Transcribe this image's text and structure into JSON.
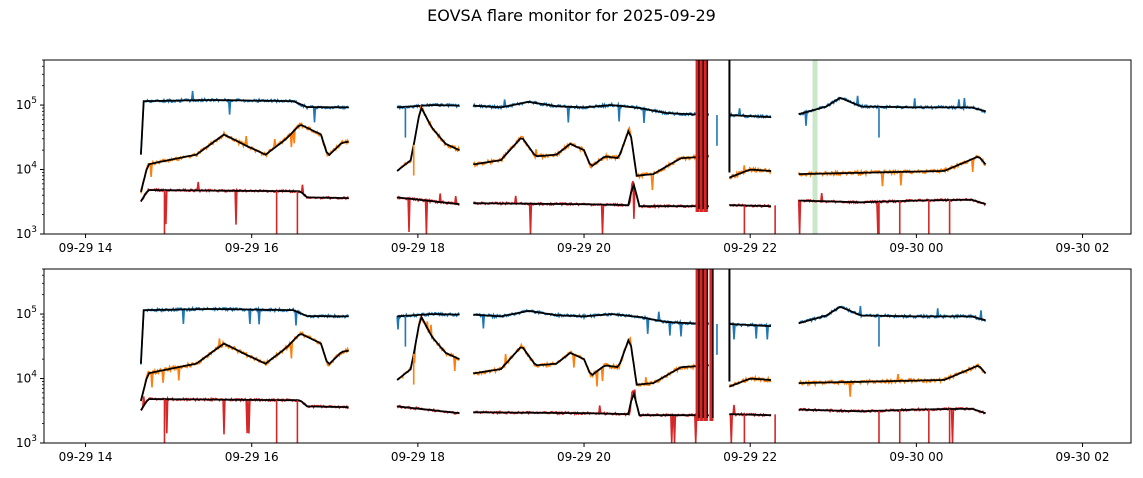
{
  "title": "EOVSA flare monitor for 2025-09-29",
  "colors": {
    "high": "#1f77b4",
    "mid": "#ff7f0e",
    "low": "#d62728",
    "smooth": "#000000",
    "band": "#2ca02c"
  },
  "chart_data": [
    {
      "type": "line",
      "yscale": "log",
      "ylim": [
        1000,
        500000
      ],
      "xlim": [
        "2025-09-29 13:30",
        "2025-09-30 02:35"
      ],
      "xticks": [
        "09-29 14",
        "09-29 16",
        "09-29 18",
        "09-29 20",
        "09-29 22",
        "09-30 00",
        "09-30 02"
      ],
      "yticks": [
        "10^3",
        "10^4",
        "10^5"
      ],
      "segments": [
        [
          "14:40",
          "17:10"
        ],
        [
          "17:45",
          "18:30"
        ],
        [
          "18:40",
          "21:30"
        ],
        [
          "21:45",
          "22:15"
        ],
        [
          "22:35",
          "00:50"
        ]
      ],
      "series": [
        {
          "color": "high",
          "points": [
            [
              "14:40",
              17000
            ],
            [
              "14:42",
              115000
            ],
            [
              "15:30",
              120000
            ],
            [
              "16:30",
              115000
            ],
            [
              "16:40",
              93000
            ],
            [
              "17:10",
              92000
            ],
            [
              "17:45",
              92000
            ],
            [
              "18:10",
              100000
            ],
            [
              "18:30",
              98000
            ],
            [
              "18:40",
              98000
            ],
            [
              "19:00",
              92000
            ],
            [
              "19:20",
              112000
            ],
            [
              "19:40",
              96000
            ],
            [
              "20:00",
              92000
            ],
            [
              "20:20",
              100000
            ],
            [
              "20:40",
              90000
            ],
            [
              "21:00",
              75000
            ],
            [
              "21:30",
              70000
            ],
            [
              "21:45",
              70000
            ],
            [
              "22:15",
              65000
            ],
            [
              "22:35",
              72000
            ],
            [
              "22:55",
              95000
            ],
            [
              "23:05",
              130000
            ],
            [
              "23:20",
              95000
            ],
            [
              "00:00",
              92000
            ],
            [
              "00:40",
              92000
            ],
            [
              "00:50",
              80000
            ]
          ]
        },
        {
          "color": "mid",
          "points": [
            [
              "14:40",
              4500
            ],
            [
              "14:45",
              12000
            ],
            [
              "15:00",
              14000
            ],
            [
              "15:20",
              17000
            ],
            [
              "15:40",
              35000
            ],
            [
              "15:55",
              24000
            ],
            [
              "16:10",
              17000
            ],
            [
              "16:25",
              30000
            ],
            [
              "16:35",
              50000
            ],
            [
              "16:50",
              35000
            ],
            [
              "16:55",
              16000
            ],
            [
              "17:05",
              26000
            ],
            [
              "17:10",
              27000
            ],
            [
              "17:45",
              9500
            ],
            [
              "17:55",
              14000
            ],
            [
              "18:02",
              95000
            ],
            [
              "18:10",
              45000
            ],
            [
              "18:20",
              25000
            ],
            [
              "18:30",
              20000
            ],
            [
              "18:40",
              12000
            ],
            [
              "19:00",
              14000
            ],
            [
              "19:15",
              32000
            ],
            [
              "19:25",
              16000
            ],
            [
              "19:40",
              17000
            ],
            [
              "19:50",
              25000
            ],
            [
              "20:00",
              20000
            ],
            [
              "20:05",
              11000
            ],
            [
              "20:15",
              16000
            ],
            [
              "20:25",
              15000
            ],
            [
              "20:33",
              45000
            ],
            [
              "20:38",
              8000
            ],
            [
              "20:50",
              8500
            ],
            [
              "21:10",
              15000
            ],
            [
              "21:30",
              16000
            ],
            [
              "21:45",
              7500
            ],
            [
              "22:00",
              10000
            ],
            [
              "22:15",
              9500
            ],
            [
              "22:35",
              8500
            ],
            [
              "23:30",
              9000
            ],
            [
              "00:20",
              9500
            ],
            [
              "00:45",
              16000
            ],
            [
              "00:50",
              12000
            ]
          ]
        },
        {
          "color": "low",
          "points": [
            [
              "14:40",
              3200
            ],
            [
              "14:45",
              4800
            ],
            [
              "16:35",
              4600
            ],
            [
              "16:40",
              3700
            ],
            [
              "17:10",
              3600
            ],
            [
              "17:45",
              3700
            ],
            [
              "18:30",
              2900
            ],
            [
              "18:40",
              3000
            ],
            [
              "20:00",
              2900
            ],
            [
              "20:33",
              2800
            ],
            [
              "20:35",
              7000
            ],
            [
              "20:40",
              2700
            ],
            [
              "21:30",
              2700
            ],
            [
              "21:45",
              2800
            ],
            [
              "22:15",
              2700
            ],
            [
              "22:35",
              3300
            ],
            [
              "23:20",
              3100
            ],
            [
              "00:00",
              3300
            ],
            [
              "00:40",
              3400
            ],
            [
              "00:50",
              2900
            ]
          ]
        }
      ],
      "band": [
        "22:45",
        "22:48"
      ],
      "spikes": [
        "21:22",
        "21:25",
        "21:28"
      ]
    },
    {
      "type": "line",
      "yscale": "log",
      "ylim": [
        1000,
        500000
      ],
      "xlim": [
        "2025-09-29 13:30",
        "2025-09-30 02:35"
      ],
      "xticks": [
        "09-29 14",
        "09-29 16",
        "09-29 18",
        "09-29 20",
        "09-29 22",
        "09-30 00",
        "09-30 02"
      ],
      "yticks": [
        "10^3",
        "10^4",
        "10^5"
      ],
      "segments": [
        [
          "14:40",
          "17:10"
        ],
        [
          "17:45",
          "18:30"
        ],
        [
          "18:40",
          "21:30"
        ],
        [
          "21:45",
          "22:15"
        ],
        [
          "22:35",
          "00:50"
        ]
      ],
      "series": [
        {
          "color": "high",
          "points": [
            [
              "14:40",
              17000
            ],
            [
              "14:42",
              115000
            ],
            [
              "15:30",
              120000
            ],
            [
              "16:30",
              115000
            ],
            [
              "16:40",
              93000
            ],
            [
              "17:10",
              92000
            ],
            [
              "17:45",
              92000
            ],
            [
              "18:10",
              100000
            ],
            [
              "18:30",
              98000
            ],
            [
              "18:40",
              98000
            ],
            [
              "19:00",
              92000
            ],
            [
              "19:20",
              112000
            ],
            [
              "19:40",
              96000
            ],
            [
              "20:00",
              92000
            ],
            [
              "20:20",
              100000
            ],
            [
              "20:40",
              90000
            ],
            [
              "21:00",
              75000
            ],
            [
              "21:30",
              70000
            ],
            [
              "21:45",
              70000
            ],
            [
              "22:15",
              65000
            ],
            [
              "22:35",
              72000
            ],
            [
              "22:55",
              95000
            ],
            [
              "23:05",
              130000
            ],
            [
              "23:20",
              95000
            ],
            [
              "00:00",
              92000
            ],
            [
              "00:40",
              92000
            ],
            [
              "00:50",
              80000
            ]
          ]
        },
        {
          "color": "mid",
          "points": [
            [
              "14:40",
              4500
            ],
            [
              "14:45",
              12000
            ],
            [
              "15:00",
              14000
            ],
            [
              "15:20",
              17000
            ],
            [
              "15:40",
              35000
            ],
            [
              "15:55",
              24000
            ],
            [
              "16:10",
              17000
            ],
            [
              "16:25",
              30000
            ],
            [
              "16:35",
              50000
            ],
            [
              "16:50",
              35000
            ],
            [
              "16:55",
              16000
            ],
            [
              "17:05",
              26000
            ],
            [
              "17:10",
              27000
            ],
            [
              "17:45",
              9500
            ],
            [
              "17:55",
              14000
            ],
            [
              "18:02",
              95000
            ],
            [
              "18:10",
              45000
            ],
            [
              "18:20",
              25000
            ],
            [
              "18:30",
              20000
            ],
            [
              "18:40",
              12000
            ],
            [
              "19:00",
              14000
            ],
            [
              "19:15",
              32000
            ],
            [
              "19:25",
              16000
            ],
            [
              "19:40",
              17000
            ],
            [
              "19:50",
              25000
            ],
            [
              "20:00",
              20000
            ],
            [
              "20:05",
              11000
            ],
            [
              "20:15",
              16000
            ],
            [
              "20:25",
              15000
            ],
            [
              "20:33",
              45000
            ],
            [
              "20:38",
              8000
            ],
            [
              "20:50",
              8500
            ],
            [
              "21:10",
              15000
            ],
            [
              "21:30",
              16000
            ],
            [
              "21:45",
              7500
            ],
            [
              "22:00",
              10000
            ],
            [
              "22:15",
              9500
            ],
            [
              "22:35",
              8500
            ],
            [
              "23:30",
              9000
            ],
            [
              "00:20",
              9500
            ],
            [
              "00:45",
              16000
            ],
            [
              "00:50",
              12000
            ]
          ]
        },
        {
          "color": "low",
          "points": [
            [
              "14:40",
              3200
            ],
            [
              "14:45",
              4800
            ],
            [
              "16:35",
              4600
            ],
            [
              "16:40",
              3700
            ],
            [
              "17:10",
              3600
            ],
            [
              "17:45",
              3700
            ],
            [
              "18:30",
              2900
            ],
            [
              "18:40",
              3000
            ],
            [
              "20:00",
              2900
            ],
            [
              "20:33",
              2800
            ],
            [
              "20:35",
              7000
            ],
            [
              "20:40",
              2700
            ],
            [
              "21:30",
              2700
            ],
            [
              "21:45",
              2800
            ],
            [
              "22:15",
              2700
            ],
            [
              "22:35",
              3300
            ],
            [
              "23:20",
              3100
            ],
            [
              "00:00",
              3300
            ],
            [
              "00:40",
              3400
            ],
            [
              "00:50",
              2900
            ]
          ]
        }
      ],
      "band": null,
      "spikes": [
        "21:22",
        "21:25",
        "21:28",
        "21:32"
      ]
    }
  ]
}
